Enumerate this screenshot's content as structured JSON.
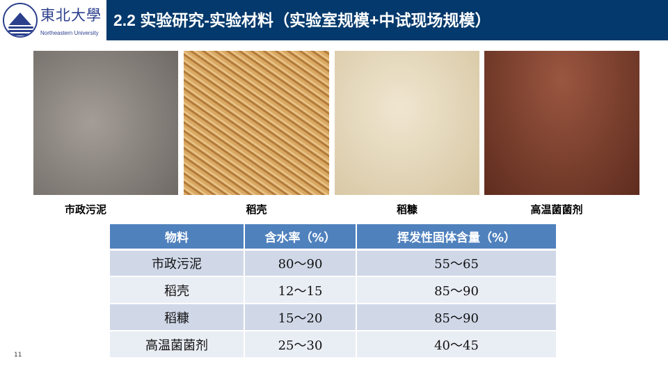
{
  "logo": {
    "cn": "東北大學",
    "en": "Northeastern University"
  },
  "header": {
    "title": "2.2 实验研究-实验材料（实验室规模+中试现场规模）"
  },
  "photos": [
    {
      "caption": "市政污泥",
      "color": "#8a8480"
    },
    {
      "caption": "稻壳",
      "color": "#c8914a"
    },
    {
      "caption": "稻糠",
      "color": "#e3d6b8"
    },
    {
      "caption": "高温菌菌剂",
      "color": "#7a3f2c"
    }
  ],
  "table": {
    "headers": [
      "物料",
      "含水率（%）",
      "挥发性固体含量（%）"
    ],
    "rows": [
      [
        "市政污泥",
        "80～90",
        "55～65"
      ],
      [
        "稻壳",
        "12～15",
        "85～90"
      ],
      [
        "稻糠",
        "15～20",
        "85～90"
      ],
      [
        "高温菌菌剂",
        "25～30",
        "40～45"
      ]
    ]
  },
  "page_number": "11"
}
